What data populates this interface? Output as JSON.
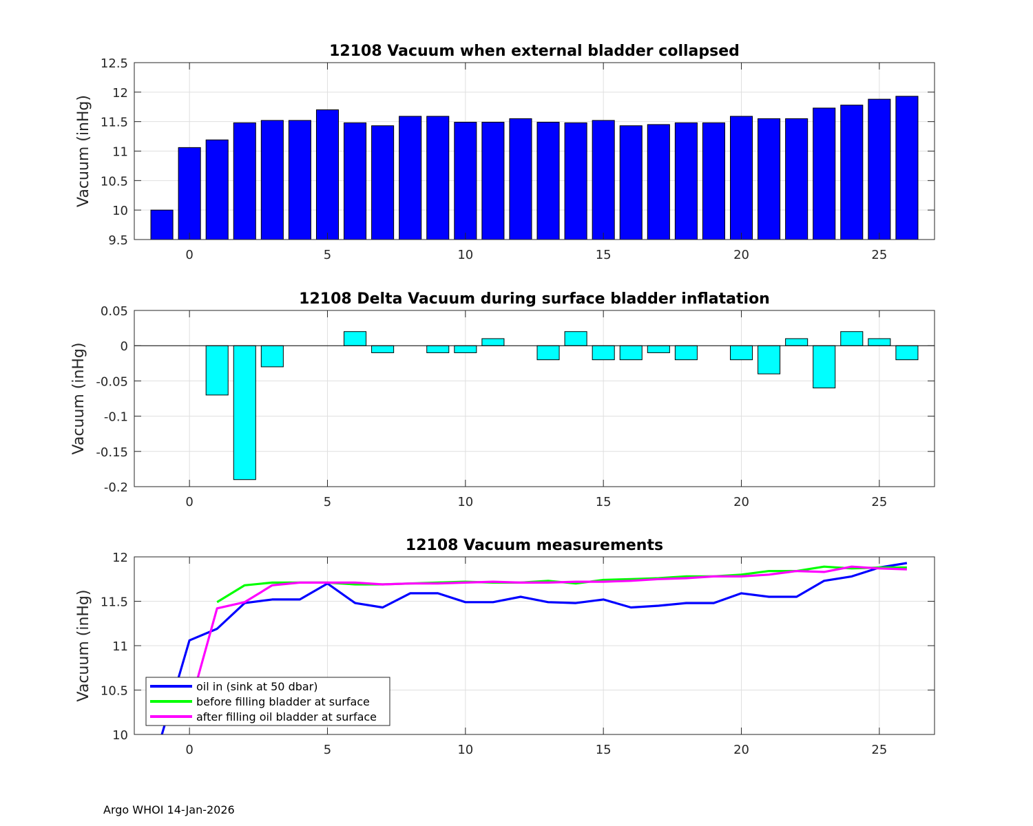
{
  "footer": "Argo WHOI 14-Jan-2026",
  "colors": {
    "bar1": "#0000FF",
    "bar2": "#00FFFF",
    "oil": "#0000FF",
    "before": "#00FF00",
    "after": "#FF00FF"
  },
  "chart_data": [
    {
      "type": "bar",
      "title": "12108 Vacuum when external bladder collapsed",
      "ylabel": "Vacuum (inHg)",
      "xlabel": "",
      "xlim": [
        -2,
        27
      ],
      "ylim": [
        9.5,
        12.5
      ],
      "xticks": [
        0,
        5,
        10,
        15,
        20,
        25
      ],
      "yticks": [
        9.5,
        10,
        10.5,
        11,
        11.5,
        12,
        12.5
      ],
      "x": [
        -1,
        0,
        1,
        2,
        3,
        4,
        5,
        6,
        7,
        8,
        9,
        10,
        11,
        12,
        13,
        14,
        15,
        16,
        17,
        18,
        19,
        20,
        21,
        22,
        23,
        24,
        25,
        26
      ],
      "values": [
        10.0,
        11.06,
        11.19,
        11.48,
        11.52,
        11.52,
        11.7,
        11.48,
        11.43,
        11.59,
        11.59,
        11.49,
        11.49,
        11.55,
        11.49,
        11.48,
        11.52,
        11.43,
        11.45,
        11.48,
        11.48,
        11.59,
        11.55,
        11.55,
        11.73,
        11.78,
        11.88,
        11.93
      ],
      "grid": true
    },
    {
      "type": "bar",
      "title": "12108 Delta Vacuum during surface bladder inflatation",
      "ylabel": "Vacuum (inHg)",
      "xlabel": "",
      "xlim": [
        -2,
        27
      ],
      "ylim": [
        -0.2,
        0.05
      ],
      "xticks": [
        0,
        5,
        10,
        15,
        20,
        25
      ],
      "yticks": [
        -0.2,
        -0.15,
        -0.1,
        -0.05,
        0,
        0.05
      ],
      "ytick_labels": [
        "-0.2",
        "-0.15",
        "-0.1",
        "-0.05",
        "0",
        "0.05"
      ],
      "x": [
        1,
        2,
        3,
        4,
        5,
        6,
        7,
        8,
        9,
        10,
        11,
        12,
        13,
        14,
        15,
        16,
        17,
        18,
        19,
        20,
        21,
        22,
        23,
        24,
        25,
        26
      ],
      "values": [
        -0.07,
        -0.19,
        -0.03,
        0,
        0,
        0.02,
        -0.01,
        0,
        -0.01,
        -0.01,
        0.01,
        0,
        -0.02,
        0.02,
        -0.02,
        -0.02,
        -0.01,
        -0.02,
        0,
        -0.02,
        -0.04,
        0.01,
        -0.06,
        0.02,
        0.01,
        -0.02
      ],
      "grid": true
    },
    {
      "type": "line",
      "title": "12108 Vacuum measurements",
      "ylabel": "Vacuum (inHg)",
      "xlabel": "",
      "xlim": [
        -2,
        27
      ],
      "ylim": [
        10,
        12
      ],
      "xticks": [
        0,
        5,
        10,
        15,
        20,
        25
      ],
      "yticks": [
        10,
        10.5,
        11,
        11.5,
        12
      ],
      "grid": true,
      "legend_position": "bottom-left",
      "series": [
        {
          "name": "oil in (sink at 50 dbar)",
          "color": "#0000FF",
          "x": [
            -1,
            0,
            1,
            2,
            3,
            4,
            5,
            6,
            7,
            8,
            9,
            10,
            11,
            12,
            13,
            14,
            15,
            16,
            17,
            18,
            19,
            20,
            21,
            22,
            23,
            24,
            25,
            26
          ],
          "values": [
            10.0,
            11.06,
            11.19,
            11.48,
            11.52,
            11.52,
            11.7,
            11.48,
            11.43,
            11.59,
            11.59,
            11.49,
            11.49,
            11.55,
            11.49,
            11.48,
            11.52,
            11.43,
            11.45,
            11.48,
            11.48,
            11.59,
            11.55,
            11.55,
            11.73,
            11.78,
            11.88,
            11.93
          ]
        },
        {
          "name": "before filling bladder at surface",
          "color": "#00FF00",
          "x": [
            1,
            2,
            3,
            4,
            5,
            6,
            7,
            8,
            9,
            10,
            11,
            12,
            13,
            14,
            15,
            16,
            17,
            18,
            19,
            20,
            21,
            22,
            23,
            24,
            25,
            26
          ],
          "values": [
            11.49,
            11.68,
            11.71,
            11.71,
            11.71,
            11.69,
            11.69,
            11.7,
            11.71,
            11.72,
            11.71,
            11.71,
            11.73,
            11.7,
            11.74,
            11.75,
            11.76,
            11.78,
            11.78,
            11.8,
            11.84,
            11.84,
            11.89,
            11.87,
            11.88,
            11.88
          ]
        },
        {
          "name": "after filling oil bladder at surface",
          "color": "#FF00FF",
          "x": [
            0,
            1,
            2,
            3,
            4,
            5,
            6,
            7,
            8,
            9,
            10,
            11,
            12,
            13,
            14,
            15,
            16,
            17,
            18,
            19,
            20,
            21,
            22,
            23,
            24,
            25,
            26
          ],
          "values": [
            10.3,
            11.42,
            11.49,
            11.68,
            11.71,
            11.71,
            11.71,
            11.69,
            11.7,
            11.7,
            11.71,
            11.72,
            11.71,
            11.71,
            11.72,
            11.72,
            11.73,
            11.75,
            11.76,
            11.78,
            11.78,
            11.8,
            11.84,
            11.83,
            11.89,
            11.87,
            11.86
          ]
        }
      ]
    }
  ]
}
